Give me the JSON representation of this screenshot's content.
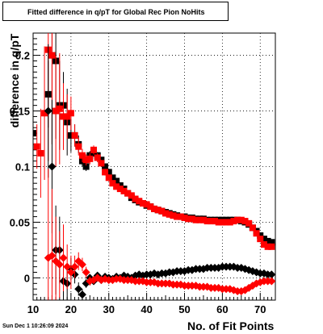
{
  "chart_data": {
    "type": "scatter",
    "title": "Fitted difference in q/pT for Global Rec Pion NoHits",
    "xlabel": "No. of Fit Points",
    "ylabel": "difference in q/pT",
    "timestamp": "Sun Dec  1 10:26:09 2024",
    "xlim": [
      10,
      74
    ],
    "ylim": [
      -0.02,
      0.22
    ],
    "xticks": [
      10,
      20,
      30,
      40,
      50,
      60,
      70
    ],
    "yticks": [
      0,
      0.05,
      0.1,
      0.15,
      0.2
    ],
    "ytick_labels": [
      "0",
      "0.05",
      "0.1",
      "0.15",
      "0.2"
    ],
    "grid": true,
    "series": [
      {
        "color": "#000000",
        "marker": "square",
        "x": [
          10,
          14,
          15,
          16,
          17,
          18,
          19,
          20,
          21,
          22,
          23,
          24,
          25,
          26,
          27,
          28,
          29,
          30,
          31,
          32,
          33,
          34,
          35,
          36,
          37,
          38,
          39,
          40,
          41,
          42,
          43,
          44,
          45,
          46,
          47,
          48,
          49,
          50,
          51,
          52,
          53,
          54,
          55,
          56,
          57,
          58,
          59,
          60,
          61,
          62,
          63,
          64,
          65,
          66,
          67,
          68,
          69,
          70,
          71,
          72,
          73
        ],
        "y": [
          0.13,
          0.165,
          0.2,
          0.195,
          0.155,
          0.155,
          0.14,
          0.128,
          0.128,
          0.12,
          0.105,
          0.1,
          0.11,
          0.112,
          0.11,
          0.106,
          0.1,
          0.095,
          0.09,
          0.087,
          0.083,
          0.08,
          0.076,
          0.072,
          0.07,
          0.068,
          0.067,
          0.065,
          0.064,
          0.062,
          0.061,
          0.06,
          0.059,
          0.058,
          0.057,
          0.056,
          0.055,
          0.055,
          0.054,
          0.054,
          0.053,
          0.053,
          0.053,
          0.052,
          0.052,
          0.052,
          0.052,
          0.052,
          0.052,
          0.052,
          0.052,
          0.052,
          0.051,
          0.05,
          0.048,
          0.045,
          0.042,
          0.038,
          0.035,
          0.033,
          0.032
        ],
        "yerr": [
          0.01,
          0.03,
          0.08,
          0.07,
          0.04,
          0.03,
          0.03,
          0.015,
          0.01,
          0.008,
          0.005,
          0.004,
          0.004,
          0.003,
          0.003,
          0.002,
          0.002,
          0.002,
          0.002,
          0.002,
          0.002,
          0.002,
          0.002,
          0.002,
          0.002,
          0.002,
          0.002,
          0.002,
          0.002,
          0.002,
          0.002,
          0.002,
          0.002,
          0.002,
          0.002,
          0.002,
          0.002,
          0.002,
          0.002,
          0.002,
          0.002,
          0.002,
          0.002,
          0.002,
          0.002,
          0.002,
          0.002,
          0.002,
          0.002,
          0.002,
          0.002,
          0.002,
          0.002,
          0.002,
          0.002,
          0.002,
          0.002,
          0.002,
          0.002,
          0.002,
          0.002
        ]
      },
      {
        "color": "#ff0000",
        "marker": "square",
        "x": [
          11,
          12,
          13,
          14,
          15,
          16,
          17,
          18,
          19,
          20,
          21,
          22,
          23,
          24,
          25,
          26,
          27,
          28,
          29,
          30,
          31,
          32,
          33,
          34,
          35,
          36,
          37,
          38,
          39,
          40,
          41,
          42,
          43,
          44,
          45,
          46,
          47,
          48,
          49,
          50,
          51,
          52,
          53,
          54,
          55,
          56,
          57,
          58,
          59,
          60,
          61,
          62,
          63,
          64,
          65,
          66,
          67,
          68,
          69,
          70,
          71,
          72,
          73
        ],
        "y": [
          0.118,
          0.112,
          0.148,
          0.205,
          0.2,
          0.15,
          0.152,
          0.145,
          0.145,
          0.148,
          0.128,
          0.118,
          0.11,
          0.106,
          0.107,
          0.115,
          0.108,
          0.103,
          0.095,
          0.09,
          0.085,
          0.082,
          0.08,
          0.078,
          0.076,
          0.074,
          0.071,
          0.069,
          0.067,
          0.066,
          0.064,
          0.062,
          0.061,
          0.06,
          0.058,
          0.057,
          0.056,
          0.055,
          0.055,
          0.054,
          0.053,
          0.053,
          0.052,
          0.052,
          0.052,
          0.051,
          0.051,
          0.051,
          0.05,
          0.05,
          0.05,
          0.05,
          0.051,
          0.052,
          0.052,
          0.051,
          0.049,
          0.045,
          0.04,
          0.035,
          0.03,
          0.028,
          0.028
        ],
        "yerr": [
          0.02,
          0.04,
          0.06,
          0.1,
          0.08,
          0.05,
          0.05,
          0.03,
          0.02,
          0.015,
          0.01,
          0.008,
          0.006,
          0.005,
          0.005,
          0.004,
          0.004,
          0.003,
          0.003,
          0.003,
          0.002,
          0.002,
          0.002,
          0.002,
          0.002,
          0.002,
          0.002,
          0.002,
          0.002,
          0.002,
          0.002,
          0.002,
          0.002,
          0.002,
          0.002,
          0.002,
          0.002,
          0.002,
          0.002,
          0.002,
          0.002,
          0.002,
          0.002,
          0.002,
          0.002,
          0.002,
          0.002,
          0.002,
          0.002,
          0.002,
          0.002,
          0.002,
          0.002,
          0.002,
          0.002,
          0.002,
          0.002,
          0.002,
          0.002,
          0.002,
          0.002,
          0.002,
          0.002
        ]
      },
      {
        "color": "#000000",
        "marker": "diamond",
        "x": [
          14,
          15,
          16,
          17,
          18,
          19,
          20,
          21,
          22,
          23,
          24,
          25,
          26,
          27,
          28,
          29,
          30,
          31,
          32,
          33,
          34,
          35,
          36,
          37,
          38,
          39,
          40,
          41,
          42,
          43,
          44,
          45,
          46,
          47,
          48,
          49,
          50,
          51,
          52,
          53,
          54,
          55,
          56,
          57,
          58,
          59,
          60,
          61,
          62,
          63,
          64,
          65,
          66,
          67,
          68,
          69,
          70,
          71,
          72,
          73
        ],
        "y": [
          0.15,
          0.1,
          0.025,
          0.025,
          -0.003,
          -0.005,
          0.008,
          0.003,
          -0.01,
          -0.015,
          -0.005,
          0.0,
          -0.003,
          0.002,
          -0.002,
          0.001,
          0.0,
          -0.001,
          0.001,
          0.0,
          0.002,
          0.001,
          0.0,
          0.002,
          0.003,
          0.002,
          0.003,
          0.003,
          0.004,
          0.003,
          0.004,
          0.004,
          0.005,
          0.005,
          0.006,
          0.006,
          0.006,
          0.007,
          0.007,
          0.008,
          0.008,
          0.008,
          0.009,
          0.009,
          0.009,
          0.009,
          0.01,
          0.01,
          0.01,
          0.01,
          0.009,
          0.009,
          0.008,
          0.007,
          0.006,
          0.005,
          0.004,
          0.004,
          0.003,
          0.003
        ],
        "yerr": [
          0.06,
          0.06,
          0.04,
          0.03,
          0.02,
          0.015,
          0.01,
          0.008,
          0.006,
          0.005,
          0.004,
          0.003,
          0.003,
          0.002,
          0.002,
          0.002,
          0.002,
          0.002,
          0.002,
          0.002,
          0.002,
          0.002,
          0.002,
          0.002,
          0.002,
          0.002,
          0.002,
          0.002,
          0.002,
          0.002,
          0.002,
          0.002,
          0.002,
          0.002,
          0.002,
          0.002,
          0.002,
          0.002,
          0.002,
          0.002,
          0.002,
          0.002,
          0.002,
          0.002,
          0.002,
          0.002,
          0.002,
          0.002,
          0.002,
          0.002,
          0.002,
          0.002,
          0.002,
          0.002,
          0.002,
          0.002,
          0.002,
          0.002,
          0.002,
          0.002
        ]
      },
      {
        "color": "#ff0000",
        "marker": "diamond",
        "x": [
          14,
          15,
          16,
          17,
          18,
          19,
          20,
          21,
          22,
          23,
          24,
          25,
          26,
          27,
          28,
          29,
          30,
          31,
          32,
          33,
          34,
          35,
          36,
          37,
          38,
          39,
          40,
          41,
          42,
          43,
          44,
          45,
          46,
          47,
          48,
          49,
          50,
          51,
          52,
          53,
          54,
          55,
          56,
          57,
          58,
          59,
          60,
          61,
          62,
          63,
          64,
          65,
          66,
          67,
          68,
          69,
          70,
          71,
          72,
          73
        ],
        "y": [
          0.018,
          0.02,
          0.015,
          0.012,
          0.018,
          0.01,
          0.005,
          0.01,
          0.015,
          0.012,
          0.005,
          -0.003,
          -0.002,
          0.0,
          -0.002,
          -0.001,
          -0.002,
          -0.002,
          -0.001,
          -0.001,
          -0.002,
          -0.002,
          -0.002,
          -0.003,
          -0.003,
          -0.003,
          -0.004,
          -0.004,
          -0.004,
          -0.005,
          -0.005,
          -0.005,
          -0.005,
          -0.006,
          -0.006,
          -0.006,
          -0.007,
          -0.007,
          -0.007,
          -0.007,
          -0.008,
          -0.008,
          -0.008,
          -0.009,
          -0.009,
          -0.009,
          -0.01,
          -0.01,
          -0.01,
          -0.011,
          -0.012,
          -0.012,
          -0.011,
          -0.009,
          -0.007,
          -0.005,
          -0.004,
          -0.003,
          -0.003,
          -0.003
        ],
        "yerr": [
          0.08,
          0.06,
          0.04,
          0.03,
          0.03,
          0.02,
          0.015,
          0.01,
          0.008,
          0.006,
          0.005,
          0.004,
          0.003,
          0.003,
          0.002,
          0.002,
          0.002,
          0.002,
          0.002,
          0.002,
          0.002,
          0.002,
          0.002,
          0.002,
          0.002,
          0.002,
          0.002,
          0.002,
          0.002,
          0.002,
          0.002,
          0.002,
          0.002,
          0.002,
          0.002,
          0.002,
          0.002,
          0.002,
          0.002,
          0.002,
          0.002,
          0.002,
          0.002,
          0.002,
          0.002,
          0.002,
          0.002,
          0.002,
          0.002,
          0.002,
          0.002,
          0.002,
          0.002,
          0.002,
          0.002,
          0.002,
          0.002,
          0.002,
          0.002,
          0.002
        ]
      }
    ]
  }
}
